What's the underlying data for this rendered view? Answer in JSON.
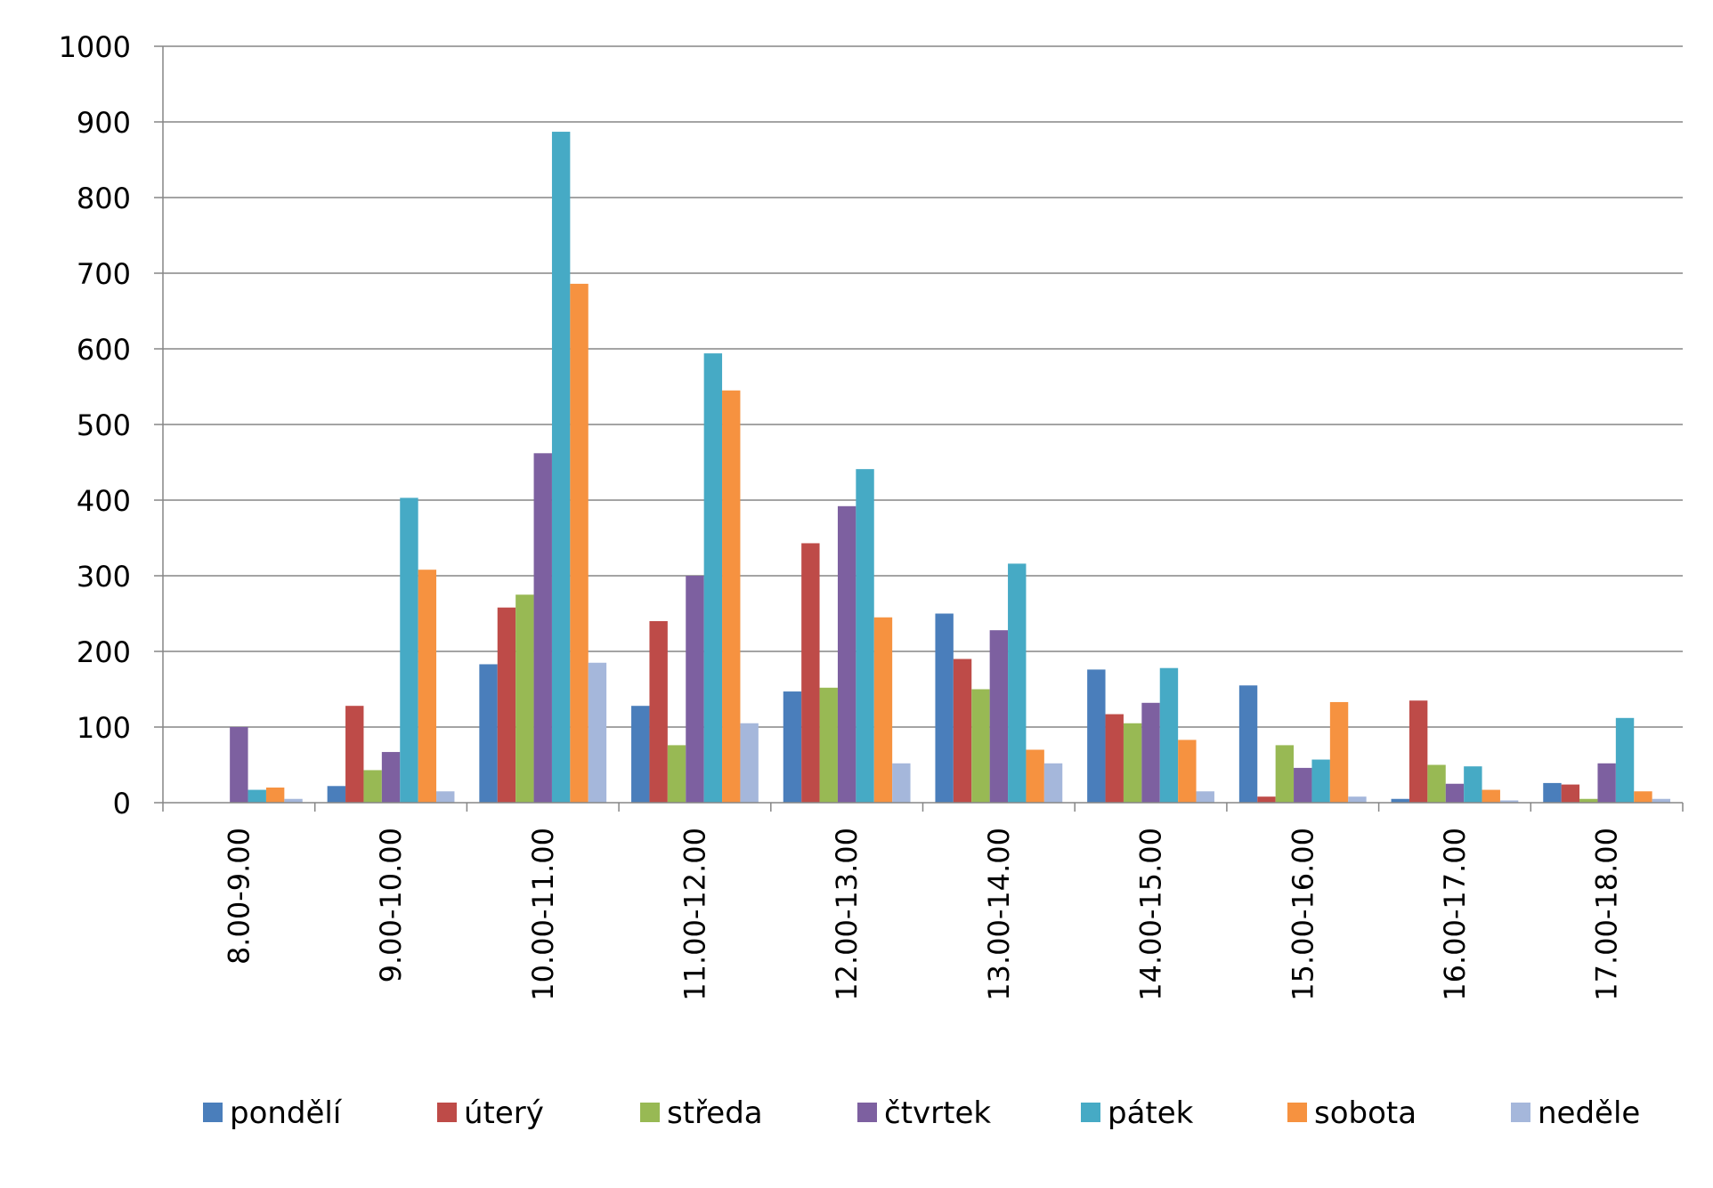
{
  "chart_data": {
    "type": "bar",
    "title": "",
    "xlabel": "",
    "ylabel": "",
    "ylim": [
      0,
      1000
    ],
    "yticks": [
      0,
      100,
      200,
      300,
      400,
      500,
      600,
      700,
      800,
      900,
      1000
    ],
    "grid": true,
    "legend_position": "bottom",
    "categories": [
      "8.00-9.00",
      "9.00-10.00",
      "10.00-11.00",
      "11.00-12.00",
      "12.00-13.00",
      "13.00-14.00",
      "14.00-15.00",
      "15.00-16.00",
      "16.00-17.00",
      "17.00-18.00"
    ],
    "series": [
      {
        "name": "pondělí",
        "color": "#4A7EBB",
        "values": [
          0,
          22,
          183,
          128,
          147,
          250,
          176,
          155,
          5,
          26
        ]
      },
      {
        "name": "úterý",
        "color": "#BE4B48",
        "values": [
          0,
          128,
          258,
          240,
          343,
          190,
          117,
          8,
          135,
          24
        ]
      },
      {
        "name": "středa",
        "color": "#98B954",
        "values": [
          0,
          43,
          275,
          76,
          152,
          150,
          105,
          76,
          50,
          5
        ]
      },
      {
        "name": "čtvrtek",
        "color": "#7D60A0",
        "values": [
          100,
          67,
          462,
          300,
          392,
          228,
          132,
          46,
          25,
          52
        ]
      },
      {
        "name": "pátek",
        "color": "#46AAC5",
        "values": [
          17,
          403,
          887,
          594,
          441,
          316,
          178,
          57,
          48,
          112
        ]
      },
      {
        "name": "sobota",
        "color": "#F69240",
        "values": [
          20,
          308,
          686,
          545,
          245,
          70,
          83,
          133,
          17,
          15
        ]
      },
      {
        "name": "neděle",
        "color": "#A5B7DB",
        "values": [
          5,
          15,
          185,
          105,
          52,
          52,
          15,
          8,
          3,
          5
        ]
      }
    ]
  }
}
